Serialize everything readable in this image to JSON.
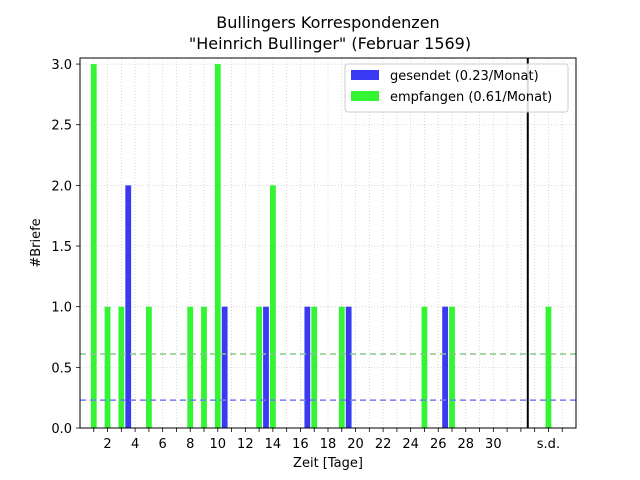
{
  "chart_data": {
    "type": "bar",
    "title": "Bullingers Korrespondenzen",
    "subtitle": "\"Heinrich Bullinger\" (Februar 1569)",
    "xlabel": "Zeit [Tage]",
    "ylabel": "#Briefe",
    "ylim": [
      0,
      3.05
    ],
    "xlim": [
      0,
      36
    ],
    "x_ticks": [
      2,
      4,
      6,
      8,
      10,
      12,
      14,
      16,
      18,
      20,
      22,
      24,
      26,
      28,
      30
    ],
    "x_tick_labels": [
      "2",
      "4",
      "6",
      "8",
      "10",
      "12",
      "14",
      "16",
      "18",
      "20",
      "22",
      "24",
      "26",
      "28",
      "30"
    ],
    "extra_tick": {
      "x": 34,
      "label": "s.d."
    },
    "y_ticks": [
      0,
      0.5,
      1.0,
      1.5,
      2.0,
      2.5,
      3.0
    ],
    "y_tick_labels": [
      "0.0",
      "0.5",
      "1.0",
      "1.5",
      "2.0",
      "2.5",
      "3.0"
    ],
    "grid": true,
    "legend_position": "top-right",
    "separator_x": 32.5,
    "series": [
      {
        "name": "gesendet (0.23/Monat)",
        "color": "#3a3af5",
        "mean_line": 0.23,
        "mean_color": "#7a7af5",
        "points": [
          {
            "day": 3,
            "value": 2
          },
          {
            "day": 10,
            "value": 1
          },
          {
            "day": 13,
            "value": 1
          },
          {
            "day": 16,
            "value": 1
          },
          {
            "day": 19,
            "value": 1
          },
          {
            "day": 26,
            "value": 1
          }
        ]
      },
      {
        "name": "empfangen (0.61/Monat)",
        "color": "#33f533",
        "mean_line": 0.61,
        "mean_color": "#88c888",
        "points": [
          {
            "day": 1,
            "value": 3
          },
          {
            "day": 2,
            "value": 1
          },
          {
            "day": 3,
            "value": 1
          },
          {
            "day": 5,
            "value": 1
          },
          {
            "day": 8,
            "value": 1
          },
          {
            "day": 9,
            "value": 1
          },
          {
            "day": 10,
            "value": 3
          },
          {
            "day": 13,
            "value": 1
          },
          {
            "day": 14,
            "value": 2
          },
          {
            "day": 17,
            "value": 1
          },
          {
            "day": 19,
            "value": 1
          },
          {
            "day": 25,
            "value": 1
          },
          {
            "day": 27,
            "value": 1
          },
          {
            "day": 34,
            "value": 1
          }
        ]
      }
    ]
  }
}
